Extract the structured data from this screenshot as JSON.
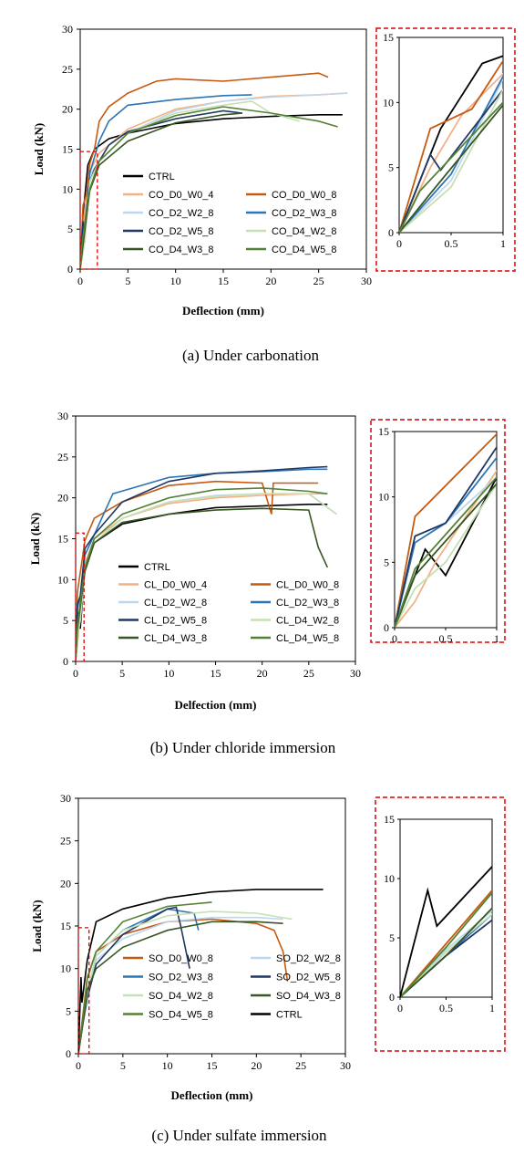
{
  "chart_data": [
    {
      "type": "line",
      "xlabel": "Deflection (mm)",
      "ylabel": "Load (kN)",
      "xlim": [
        0,
        30
      ],
      "ylim": [
        0,
        30
      ],
      "xticks": [
        "0",
        "5",
        "10",
        "15",
        "20",
        "25",
        "30"
      ],
      "yticks": [
        "0",
        "5",
        "10",
        "15",
        "20",
        "25",
        "30"
      ],
      "legend": "bottom-left, two columns",
      "caption": "(a) Under carbonation",
      "inset": {
        "xlim": [
          0,
          1
        ],
        "ylim": [
          0,
          15
        ],
        "xticks": [
          "0",
          "0.5",
          "1"
        ],
        "yticks": [
          "0",
          "5",
          "10",
          "15"
        ]
      },
      "series": [
        {
          "name": "CTRL",
          "color": "#000000",
          "x": [
            0,
            0.4,
            0.8,
            1.5,
            3,
            5,
            10,
            15,
            20,
            25,
            27.5
          ],
          "y": [
            0,
            8,
            13,
            15,
            16.3,
            17,
            18.2,
            18.8,
            19.1,
            19.3,
            19.3
          ]
        },
        {
          "name": "CO_D0_W0_4",
          "color": "#f4b183",
          "x": [
            0,
            0.3,
            0.6,
            1,
            2,
            5,
            10,
            15,
            20,
            25,
            28
          ],
          "y": [
            0,
            5,
            9,
            12.2,
            14.5,
            17.5,
            20,
            21,
            21.6,
            21.8,
            22
          ]
        },
        {
          "name": "CO_D0_W0_8",
          "color": "#c55a11",
          "x": [
            0,
            0.3,
            0.7,
            1,
            1.5,
            2,
            3,
            5,
            8,
            10,
            15,
            20,
            25,
            26
          ],
          "y": [
            0,
            8,
            9.5,
            13.2,
            15,
            18.5,
            20.3,
            22,
            23.5,
            23.8,
            23.5,
            24,
            24.5,
            24
          ]
        },
        {
          "name": "CO_D2_W2_8",
          "color": "#bdd7ee",
          "x": [
            0,
            0.5,
            1,
            2,
            5,
            10,
            15,
            20,
            25,
            28
          ],
          "y": [
            0,
            4,
            11.8,
            13.5,
            17,
            19.8,
            21,
            21.5,
            21.8,
            22
          ]
        },
        {
          "name": "CO_D2_W3_8",
          "color": "#2e75b6",
          "x": [
            0,
            0.5,
            1,
            2,
            3,
            5,
            10,
            15,
            18
          ],
          "y": [
            0,
            4.5,
            12,
            16,
            18.5,
            20.5,
            21.2,
            21.7,
            21.8
          ]
        },
        {
          "name": "CO_D2_W5_8",
          "color": "#1f3864",
          "x": [
            0,
            0.3,
            0.4,
            1,
            1.5,
            3,
            5,
            10,
            15,
            17
          ],
          "y": [
            0,
            6,
            4.8,
            11,
            12.5,
            15.5,
            17.2,
            18.8,
            19.8,
            19.5
          ]
        },
        {
          "name": "CO_D4_W2_8",
          "color": "#c5e0b4",
          "x": [
            0,
            0.5,
            1,
            2,
            5,
            10,
            15,
            18,
            20,
            23
          ],
          "y": [
            0,
            3.5,
            11,
            13.5,
            17,
            19.5,
            20.5,
            21,
            19.5,
            18.5
          ]
        },
        {
          "name": "CO_D4_W3_8",
          "color": "#375623",
          "x": [
            0,
            0.3,
            1,
            2,
            5,
            10,
            15,
            17
          ],
          "y": [
            0,
            3,
            9.8,
            13,
            16,
            18.3,
            19.3,
            19.5
          ]
        },
        {
          "name": "CO_D4_W5_8",
          "color": "#548235",
          "x": [
            0,
            0.2,
            1,
            2,
            5,
            10,
            15,
            20,
            25,
            27
          ],
          "y": [
            0,
            3.2,
            10,
            13.5,
            17,
            19.2,
            20.3,
            19.5,
            18.5,
            17.8
          ]
        }
      ]
    },
    {
      "type": "line",
      "xlabel": "Delfection (mm)",
      "ylabel": "Load (kN)",
      "xlim": [
        0,
        30
      ],
      "ylim": [
        0,
        30
      ],
      "xticks": [
        "0",
        "5",
        "10",
        "15",
        "20",
        "25",
        "30"
      ],
      "yticks": [
        "0",
        "5",
        "10",
        "15",
        "20",
        "25",
        "30"
      ],
      "legend": "bottom-left, two columns",
      "caption": "(b) Under chloride immersion",
      "inset": {
        "xlim": [
          0,
          1
        ],
        "ylim": [
          0,
          15
        ],
        "xticks": [
          "0",
          "0.5",
          "1"
        ],
        "yticks": [
          "0",
          "5",
          "10",
          "15"
        ]
      },
      "series": [
        {
          "name": "CTRL",
          "color": "#000000",
          "x": [
            0,
            0.3,
            0.5,
            1,
            2,
            5,
            10,
            15,
            20,
            25,
            27
          ],
          "y": [
            0,
            6,
            4,
            11.5,
            14.5,
            16.8,
            18,
            18.8,
            19,
            19.2,
            19.2
          ]
        },
        {
          "name": "CL_D0_W0_4",
          "color": "#f4b183",
          "x": [
            0,
            0.2,
            0.4,
            1,
            2,
            5,
            10,
            15,
            20,
            25,
            27
          ],
          "y": [
            0,
            2,
            5,
            12,
            15,
            17.5,
            19.3,
            20,
            20.3,
            20.5,
            20.5
          ]
        },
        {
          "name": "CL_D0_W0_8",
          "color": "#c55a11",
          "x": [
            0,
            0.2,
            1,
            2,
            5,
            10,
            15,
            20,
            21,
            21.2,
            26
          ],
          "y": [
            0,
            8.5,
            14.8,
            17.5,
            19.5,
            21.5,
            22,
            21.8,
            18,
            21.8,
            21.8
          ]
        },
        {
          "name": "CL_D2_W2_8",
          "color": "#bdd7ee",
          "x": [
            0,
            0.2,
            0.5,
            1,
            2,
            5,
            10,
            15,
            20,
            25,
            28
          ],
          "y": [
            0,
            7,
            8,
            11.5,
            14.5,
            17.5,
            19.5,
            20.3,
            20.5,
            20.5,
            18
          ]
        },
        {
          "name": "CL_D2_W3_8",
          "color": "#2e75b6",
          "x": [
            0,
            0.2,
            0.5,
            1,
            2,
            4,
            10,
            15,
            20,
            25,
            27
          ],
          "y": [
            0,
            6.5,
            8,
            13,
            15.5,
            20.5,
            22.5,
            23,
            23.2,
            23.5,
            23.5
          ]
        },
        {
          "name": "CL_D2_W5_8",
          "color": "#1f3864",
          "x": [
            0,
            0.2,
            0.5,
            1,
            2,
            5,
            10,
            15,
            20,
            25,
            27
          ],
          "y": [
            0,
            7,
            8,
            13.8,
            15.5,
            19.5,
            22,
            23,
            23.3,
            23.7,
            23.8
          ]
        },
        {
          "name": "CL_D4_W2_8",
          "color": "#c5e0b4",
          "x": [
            0,
            0.2,
            0.5,
            1,
            2,
            5,
            10,
            15,
            20,
            25,
            28
          ],
          "y": [
            0,
            3,
            5,
            11,
            14.5,
            17.5,
            19.5,
            20.2,
            20.5,
            20.5,
            18
          ]
        },
        {
          "name": "CL_D4_W3_8",
          "color": "#375623",
          "x": [
            0,
            0.2,
            1,
            2,
            5,
            10,
            15,
            20,
            25,
            26,
            27
          ],
          "y": [
            0,
            4,
            11,
            14.5,
            17,
            18,
            18.5,
            18.7,
            18.5,
            14,
            11.5
          ]
        },
        {
          "name": "CL_D4_W5_8",
          "color": "#548235",
          "x": [
            0,
            0.2,
            1,
            2,
            5,
            10,
            15,
            20,
            25,
            27
          ],
          "y": [
            0,
            4.5,
            11.5,
            15,
            18,
            20,
            21,
            21.2,
            20.8,
            20.5
          ]
        }
      ]
    },
    {
      "type": "line",
      "xlabel": "Deflection (mm)",
      "ylabel": "Load (kN)",
      "xlim": [
        0,
        30
      ],
      "ylim": [
        0,
        30
      ],
      "xticks": [
        "0",
        "5",
        "10",
        "15",
        "20",
        "25",
        "30"
      ],
      "yticks": [
        "0",
        "5",
        "10",
        "15",
        "20",
        "25",
        "30"
      ],
      "legend": "bottom-left, two columns",
      "caption": "(c) Under sulfate immersion",
      "inset": {
        "xlim": [
          0,
          1
        ],
        "ylim": [
          0,
          15
        ],
        "xticks": [
          "0",
          "0.5",
          "1"
        ],
        "yticks": [
          "0",
          "5",
          "10",
          "15"
        ]
      },
      "series": [
        {
          "name": "SO_D0_W0_8",
          "color": "#c55a11",
          "x": [
            0,
            0.5,
            1,
            2,
            5,
            10,
            15,
            20,
            22,
            23,
            23.5
          ],
          "y": [
            0,
            4.5,
            9,
            12,
            14,
            15.5,
            15.8,
            15.3,
            14.5,
            12,
            8.5
          ]
        },
        {
          "name": "SO_D2_W2_8",
          "color": "#bdd7ee",
          "x": [
            0,
            0.5,
            1,
            2,
            5,
            10,
            15,
            20,
            23
          ],
          "y": [
            0,
            4,
            7.3,
            11,
            13.5,
            15.5,
            16,
            16,
            15.8
          ]
        },
        {
          "name": "SO_D2_W3_8",
          "color": "#2e75b6",
          "x": [
            0,
            0.5,
            1,
            2,
            5,
            10,
            13,
            13.5
          ],
          "y": [
            0,
            3.5,
            7,
            11.5,
            14.5,
            17,
            16.5,
            14.5
          ]
        },
        {
          "name": "SO_D2_W5_8",
          "color": "#1f3864",
          "x": [
            0,
            0.5,
            1,
            2,
            5,
            10,
            11,
            11.5,
            12.5
          ],
          "y": [
            0,
            3.5,
            6.5,
            10.5,
            14,
            17,
            17.2,
            15,
            10
          ]
        },
        {
          "name": "SO_D4_W2_8",
          "color": "#c5e0b4",
          "x": [
            0,
            0.5,
            1,
            2,
            5,
            10,
            15,
            20,
            24
          ],
          "y": [
            0,
            3.8,
            7,
            11.5,
            14.5,
            16.2,
            16.7,
            16.5,
            15.8
          ]
        },
        {
          "name": "SO_D4_W3_8",
          "color": "#375623",
          "x": [
            0,
            0.5,
            1,
            2,
            5,
            10,
            15,
            20,
            23
          ],
          "y": [
            0,
            3.5,
            7.5,
            10,
            12.5,
            14.5,
            15.5,
            15.5,
            15.3
          ]
        },
        {
          "name": "SO_D4_W5_8",
          "color": "#548235",
          "x": [
            0,
            0.5,
            1,
            2,
            5,
            10,
            15
          ],
          "y": [
            0,
            4.2,
            8.8,
            12,
            15.5,
            17.3,
            17.8
          ]
        },
        {
          "name": "CTRL",
          "color": "#000000",
          "x": [
            0,
            0.3,
            0.4,
            1,
            2,
            5,
            10,
            15,
            20,
            25,
            27.5
          ],
          "y": [
            0,
            9,
            6,
            11,
            15.5,
            17,
            18.3,
            19,
            19.3,
            19.3,
            19.3
          ]
        }
      ]
    }
  ]
}
